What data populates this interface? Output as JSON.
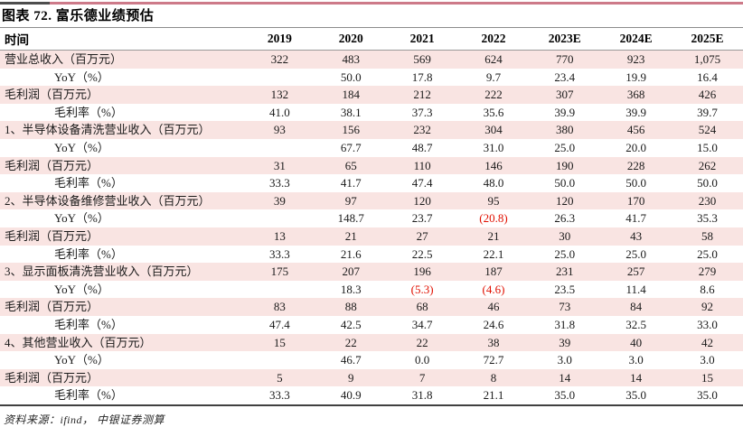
{
  "page": {
    "title": "图表 72. 富乐德业绩预估",
    "source_note": "资料来源：ifind， 中银证券测算"
  },
  "colors": {
    "rose_line": "#cd7a89",
    "dark_segment": "#4d4d4d",
    "band_pink": "#f9e4e2",
    "negative_red": "#e11000"
  },
  "table": {
    "header": {
      "label": "时间",
      "years": [
        "2019",
        "2020",
        "2021",
        "2022",
        "2023E",
        "2024E",
        "2025E"
      ]
    },
    "rows": [
      {
        "label": "营业总收入（百万元）",
        "indent": false,
        "values": [
          "322",
          "483",
          "569",
          "624",
          "770",
          "923",
          "1,075"
        ]
      },
      {
        "label": "YoY（%）",
        "indent": true,
        "values": [
          "",
          "50.0",
          "17.8",
          "9.7",
          "23.4",
          "19.9",
          "16.4"
        ]
      },
      {
        "label": "毛利润（百万元）",
        "indent": false,
        "values": [
          "132",
          "184",
          "212",
          "222",
          "307",
          "368",
          "426"
        ]
      },
      {
        "label": "毛利率（%）",
        "indent": true,
        "values": [
          "41.0",
          "38.1",
          "37.3",
          "35.6",
          "39.9",
          "39.9",
          "39.7"
        ]
      },
      {
        "label": "1、半导体设备清洗营业收入（百万元）",
        "indent": false,
        "values": [
          "93",
          "156",
          "232",
          "304",
          "380",
          "456",
          "524"
        ]
      },
      {
        "label": "YoY（%）",
        "indent": true,
        "values": [
          "",
          "67.7",
          "48.7",
          "31.0",
          "25.0",
          "20.0",
          "15.0"
        ]
      },
      {
        "label": "毛利润（百万元）",
        "indent": false,
        "values": [
          "31",
          "65",
          "110",
          "146",
          "190",
          "228",
          "262"
        ]
      },
      {
        "label": "毛利率（%）",
        "indent": true,
        "values": [
          "33.3",
          "41.7",
          "47.4",
          "48.0",
          "50.0",
          "50.0",
          "50.0"
        ]
      },
      {
        "label": "2、半导体设备维修营业收入（百万元）",
        "indent": false,
        "values": [
          "39",
          "97",
          "120",
          "95",
          "120",
          "170",
          "230"
        ]
      },
      {
        "label": "YoY（%）",
        "indent": true,
        "values": [
          "",
          "148.7",
          "23.7",
          "(20.8)",
          "26.3",
          "41.7",
          "35.3"
        ]
      },
      {
        "label": "毛利润（百万元）",
        "indent": false,
        "values": [
          "13",
          "21",
          "27",
          "21",
          "30",
          "43",
          "58"
        ]
      },
      {
        "label": "毛利率（%）",
        "indent": true,
        "values": [
          "33.3",
          "21.6",
          "22.5",
          "22.1",
          "25.0",
          "25.0",
          "25.0"
        ]
      },
      {
        "label": "3、显示面板清洗营业收入（百万元）",
        "indent": false,
        "values": [
          "175",
          "207",
          "196",
          "187",
          "231",
          "257",
          "279"
        ]
      },
      {
        "label": "YoY（%）",
        "indent": true,
        "values": [
          "",
          "18.3",
          "(5.3)",
          "(4.6)",
          "23.5",
          "11.4",
          "8.6"
        ]
      },
      {
        "label": "毛利润（百万元）",
        "indent": false,
        "values": [
          "83",
          "88",
          "68",
          "46",
          "73",
          "84",
          "92"
        ]
      },
      {
        "label": "毛利率（%）",
        "indent": true,
        "values": [
          "47.4",
          "42.5",
          "34.7",
          "24.6",
          "31.8",
          "32.5",
          "33.0"
        ]
      },
      {
        "label": "4、其他营业收入（百万元）",
        "indent": false,
        "values": [
          "15",
          "22",
          "22",
          "38",
          "39",
          "40",
          "42"
        ]
      },
      {
        "label": "YoY（%）",
        "indent": true,
        "values": [
          "",
          "46.7",
          "0.0",
          "72.7",
          "3.0",
          "3.0",
          "3.0"
        ]
      },
      {
        "label": "毛利润（百万元）",
        "indent": false,
        "values": [
          "5",
          "9",
          "7",
          "8",
          "14",
          "14",
          "15"
        ]
      },
      {
        "label": "毛利率（%）",
        "indent": true,
        "values": [
          "33.3",
          "40.9",
          "31.8",
          "21.1",
          "35.0",
          "35.0",
          "35.0"
        ]
      }
    ]
  }
}
